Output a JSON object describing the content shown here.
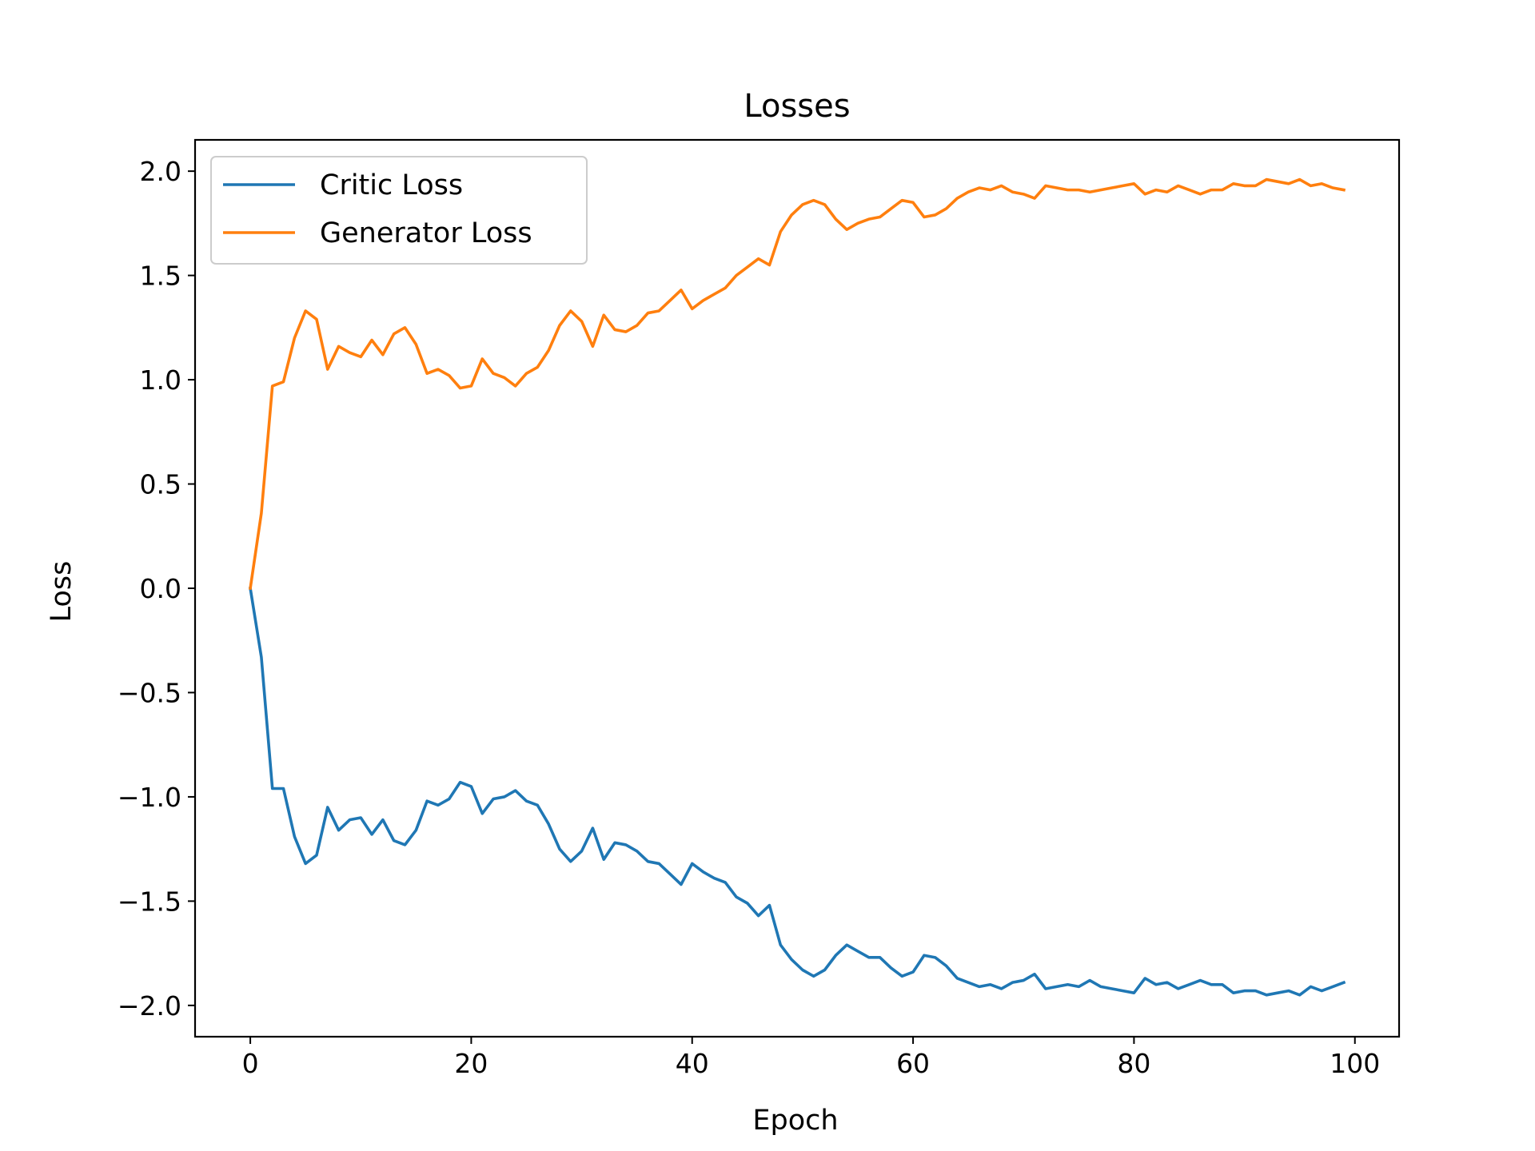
{
  "chart_data": {
    "type": "line",
    "title": "Losses",
    "xlabel": "Epoch",
    "ylabel": "Loss",
    "xlim": [
      -5,
      104
    ],
    "ylim": [
      -2.15,
      2.15
    ],
    "xticks": [
      0,
      20,
      40,
      60,
      80,
      100
    ],
    "xtick_labels": [
      "0",
      "20",
      "40",
      "60",
      "80",
      "100"
    ],
    "yticks": [
      -2.0,
      -1.5,
      -1.0,
      -0.5,
      0.0,
      0.5,
      1.0,
      1.5,
      2.0
    ],
    "ytick_labels": [
      "−2.0",
      "−1.5",
      "−1.0",
      "−0.5",
      "0.0",
      "0.5",
      "1.0",
      "1.5",
      "2.0"
    ],
    "grid": false,
    "legend": "upper-left",
    "x": [
      0,
      1,
      2,
      3,
      4,
      5,
      6,
      7,
      8,
      9,
      10,
      11,
      12,
      13,
      14,
      15,
      16,
      17,
      18,
      19,
      20,
      21,
      22,
      23,
      24,
      25,
      26,
      27,
      28,
      29,
      30,
      31,
      32,
      33,
      34,
      35,
      36,
      37,
      38,
      39,
      40,
      41,
      42,
      43,
      44,
      45,
      46,
      47,
      48,
      49,
      50,
      51,
      52,
      53,
      54,
      55,
      56,
      57,
      58,
      59,
      60,
      61,
      62,
      63,
      64,
      65,
      66,
      67,
      68,
      69,
      70,
      71,
      72,
      73,
      74,
      75,
      76,
      77,
      78,
      79,
      80,
      81,
      82,
      83,
      84,
      85,
      86,
      87,
      88,
      89,
      90,
      91,
      92,
      93,
      94,
      95,
      96,
      97,
      98,
      99
    ],
    "series": [
      {
        "name": "Critic Loss",
        "color": "#1f77b4",
        "values": [
          0.0,
          -0.33,
          -0.96,
          -0.96,
          -1.19,
          -1.32,
          -1.28,
          -1.05,
          -1.16,
          -1.11,
          -1.1,
          -1.18,
          -1.11,
          -1.21,
          -1.23,
          -1.16,
          -1.02,
          -1.04,
          -1.01,
          -0.93,
          -0.95,
          -1.08,
          -1.01,
          -1.0,
          -0.97,
          -1.02,
          -1.04,
          -1.13,
          -1.25,
          -1.31,
          -1.26,
          -1.15,
          -1.3,
          -1.22,
          -1.23,
          -1.26,
          -1.31,
          -1.32,
          -1.37,
          -1.42,
          -1.32,
          -1.36,
          -1.39,
          -1.41,
          -1.48,
          -1.51,
          -1.57,
          -1.52,
          -1.71,
          -1.78,
          -1.83,
          -1.86,
          -1.83,
          -1.76,
          -1.71,
          -1.74,
          -1.77,
          -1.77,
          -1.82,
          -1.86,
          -1.84,
          -1.76,
          -1.77,
          -1.81,
          -1.87,
          -1.89,
          -1.91,
          -1.9,
          -1.92,
          -1.89,
          -1.88,
          -1.85,
          -1.92,
          -1.91,
          -1.9,
          -1.91,
          -1.88,
          -1.91,
          -1.92,
          -1.93,
          -1.94,
          -1.87,
          -1.9,
          -1.89,
          -1.92,
          -1.9,
          -1.88,
          -1.9,
          -1.9,
          -1.94,
          -1.93,
          -1.93,
          -1.95,
          -1.94,
          -1.93,
          -1.95,
          -1.91,
          -1.93,
          -1.91,
          -1.89
        ]
      },
      {
        "name": "Generator Loss",
        "color": "#ff7f0e",
        "values": [
          0.0,
          0.36,
          0.97,
          0.99,
          1.2,
          1.33,
          1.29,
          1.05,
          1.16,
          1.13,
          1.11,
          1.19,
          1.12,
          1.22,
          1.25,
          1.17,
          1.03,
          1.05,
          1.02,
          0.96,
          0.97,
          1.1,
          1.03,
          1.01,
          0.97,
          1.03,
          1.06,
          1.14,
          1.26,
          1.33,
          1.28,
          1.16,
          1.31,
          1.24,
          1.23,
          1.26,
          1.32,
          1.33,
          1.38,
          1.43,
          1.34,
          1.38,
          1.41,
          1.44,
          1.5,
          1.54,
          1.58,
          1.55,
          1.71,
          1.79,
          1.84,
          1.86,
          1.84,
          1.77,
          1.72,
          1.75,
          1.77,
          1.78,
          1.82,
          1.86,
          1.85,
          1.78,
          1.79,
          1.82,
          1.87,
          1.9,
          1.92,
          1.91,
          1.93,
          1.9,
          1.89,
          1.87,
          1.93,
          1.92,
          1.91,
          1.91,
          1.9,
          1.91,
          1.92,
          1.93,
          1.94,
          1.89,
          1.91,
          1.9,
          1.93,
          1.91,
          1.89,
          1.91,
          1.91,
          1.94,
          1.93,
          1.93,
          1.96,
          1.95,
          1.94,
          1.96,
          1.93,
          1.94,
          1.92,
          1.91
        ]
      }
    ]
  }
}
